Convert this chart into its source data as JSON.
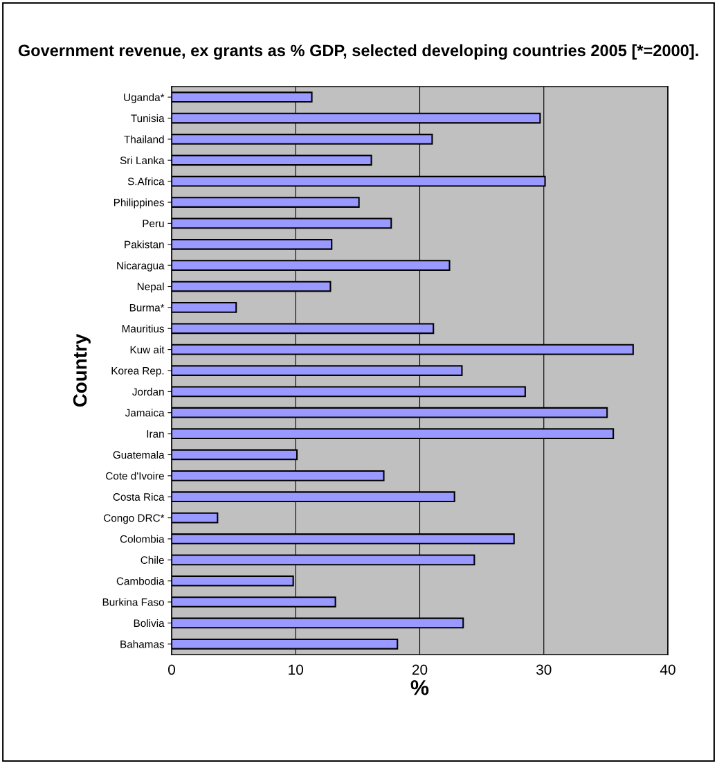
{
  "chart_data": {
    "type": "bar",
    "orientation": "horizontal",
    "title": "Government revenue, ex grants as % GDP, selected developing countries 2005 [*=2000].",
    "xlabel": "%",
    "ylabel": "Country",
    "categories": [
      "Uganda*",
      "Tunisia",
      "Thailand",
      "Sri Lanka",
      "S.Africa",
      "Philippines",
      "Peru",
      "Pakistan",
      "Nicaragua",
      "Nepal",
      "Burma*",
      "Mauritius",
      "Kuw ait",
      "Korea Rep.",
      "Jordan",
      "Jamaica",
      "Iran",
      "Guatemala",
      "Cote d'Ivoire",
      "Costa Rica",
      "Congo DRC*",
      "Colombia",
      "Chile",
      "Cambodia",
      "Burkina Faso",
      "Bolivia",
      "Bahamas"
    ],
    "values": [
      11.3,
      29.7,
      21.0,
      16.1,
      30.1,
      15.1,
      17.7,
      12.9,
      22.4,
      12.8,
      5.2,
      21.1,
      37.2,
      23.4,
      28.5,
      35.1,
      35.6,
      10.1,
      17.1,
      22.8,
      3.7,
      27.6,
      24.4,
      9.8,
      13.2,
      23.5,
      18.2
    ],
    "color": "#9999ff",
    "xlim": [
      0,
      40
    ],
    "xticks": [
      0,
      10,
      20,
      30,
      40
    ],
    "grid": "x",
    "legend": false
  }
}
